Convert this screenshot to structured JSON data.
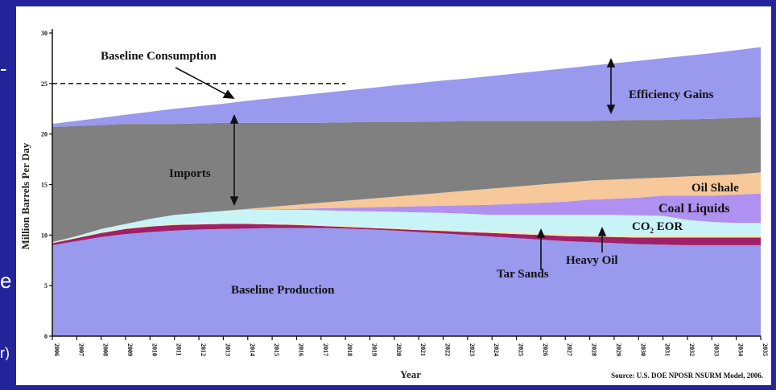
{
  "slide": {
    "background_color": "#24249a",
    "edge_glyphs": [
      "-",
      "e",
      "r)"
    ]
  },
  "chart_data": {
    "type": "area",
    "title": "",
    "ylabel": "Million Barrels Per Day",
    "xlabel": "Year",
    "ylim": [
      0,
      30
    ],
    "yticks": [
      "0",
      "5",
      "10",
      "15",
      "20",
      "25",
      "30"
    ],
    "x": [
      "2006",
      "2007",
      "2008",
      "2009",
      "2010",
      "2011",
      "2012",
      "2013",
      "2014",
      "2015",
      "2016",
      "2017",
      "2018",
      "2019",
      "2020",
      "2021",
      "2022",
      "2023",
      "2024",
      "2025",
      "2026",
      "2027",
      "2028",
      "2029",
      "2030",
      "2031",
      "2032",
      "2033",
      "2034",
      "2035"
    ],
    "stacking": "cumulative upper boundaries (data units)",
    "series": [
      {
        "name": "Baseline Production",
        "color": "#9999ee",
        "values": [
          9.0,
          9.4,
          9.8,
          10.1,
          10.3,
          10.45,
          10.55,
          10.6,
          10.65,
          10.7,
          10.7,
          10.7,
          10.65,
          10.55,
          10.45,
          10.3,
          10.15,
          10.0,
          9.85,
          9.7,
          9.55,
          9.4,
          9.3,
          9.2,
          9.1,
          9.05,
          9.0,
          9.0,
          9.0,
          9.0
        ]
      },
      {
        "name": "Tar Sands",
        "color": "#a0206a",
        "values": [
          9.2,
          9.7,
          10.2,
          10.6,
          10.85,
          11.0,
          11.05,
          11.1,
          11.1,
          11.05,
          11.0,
          10.9,
          10.8,
          10.7,
          10.6,
          10.5,
          10.4,
          10.3,
          10.2,
          10.1,
          10.0,
          9.9,
          9.85,
          9.8,
          9.75,
          9.75,
          9.75,
          9.75,
          9.75,
          9.75
        ]
      },
      {
        "name": "Heavy Oil",
        "color": "#f4e6b0",
        "values": [
          9.25,
          9.75,
          10.3,
          10.7,
          10.95,
          11.1,
          11.15,
          11.2,
          11.2,
          11.15,
          11.1,
          11.0,
          10.9,
          10.8,
          10.7,
          10.6,
          10.5,
          10.4,
          10.35,
          10.3,
          10.2,
          10.1,
          10.05,
          10.0,
          10.0,
          10.0,
          10.0,
          10.0,
          10.0,
          10.0
        ]
      },
      {
        "name": "CO2 EOR",
        "color": "#c8f4f8",
        "values": [
          9.3,
          9.9,
          10.6,
          11.1,
          11.6,
          12.0,
          12.2,
          12.4,
          12.5,
          12.5,
          12.5,
          12.45,
          12.4,
          12.35,
          12.3,
          12.25,
          12.2,
          12.1,
          12.0,
          12.0,
          12.0,
          12.0,
          12.0,
          12.0,
          11.95,
          11.9,
          11.5,
          11.3,
          11.2,
          11.2
        ]
      },
      {
        "name": "Coal Liquids",
        "color": "#b090f0",
        "values": [
          9.3,
          9.9,
          10.6,
          11.1,
          11.6,
          12.0,
          12.2,
          12.4,
          12.5,
          12.55,
          12.6,
          12.65,
          12.7,
          12.75,
          12.8,
          12.85,
          12.9,
          12.95,
          13.0,
          13.1,
          13.2,
          13.3,
          13.5,
          13.6,
          13.7,
          13.9,
          13.9,
          13.9,
          14.0,
          14.1
        ]
      },
      {
        "name": "Oil Shale",
        "color": "#f6c89a",
        "values": [
          9.3,
          9.9,
          10.6,
          11.1,
          11.6,
          12.0,
          12.2,
          12.4,
          12.6,
          12.8,
          13.0,
          13.2,
          13.4,
          13.6,
          13.8,
          14.0,
          14.2,
          14.4,
          14.6,
          14.8,
          15.0,
          15.2,
          15.4,
          15.5,
          15.6,
          15.7,
          15.8,
          15.9,
          16.0,
          16.2
        ]
      },
      {
        "name": "Imports",
        "color": "#808080",
        "values": [
          20.7,
          20.8,
          20.9,
          21.0,
          21.0,
          21.0,
          21.05,
          21.1,
          21.1,
          21.1,
          21.1,
          21.1,
          21.15,
          21.2,
          21.2,
          21.2,
          21.25,
          21.3,
          21.3,
          21.3,
          21.3,
          21.3,
          21.3,
          21.35,
          21.4,
          21.4,
          21.45,
          21.5,
          21.6,
          21.7
        ]
      },
      {
        "name": "Efficiency Gains",
        "color": "#9999ee",
        "values": [
          21.0,
          21.3,
          21.6,
          21.9,
          22.2,
          22.5,
          22.75,
          23.0,
          23.3,
          23.55,
          23.8,
          24.05,
          24.3,
          24.55,
          24.8,
          25.05,
          25.3,
          25.5,
          25.75,
          26.0,
          26.25,
          26.5,
          26.75,
          27.0,
          27.25,
          27.5,
          27.75,
          28.0,
          28.3,
          28.6
        ]
      }
    ],
    "reference_line": {
      "label": "Baseline Consumption",
      "y": 25,
      "style": "dashed"
    },
    "annotations": {
      "baseline_consumption": "Baseline Consumption",
      "efficiency_gains": "Efficiency Gains",
      "imports": "Imports",
      "oil_shale": "Oil Shale",
      "coal_liquids": "Coal Liquids",
      "co2_eor_main": "CO",
      "co2_eor_sub": "2",
      "co2_eor_tail": " EOR",
      "heavy_oil": "Heavy Oil",
      "tar_sands": "Tar Sands",
      "baseline_production": "Baseline Production"
    },
    "source": "Source: U.S. DOE NPOSR NSURM Model, 2006."
  }
}
